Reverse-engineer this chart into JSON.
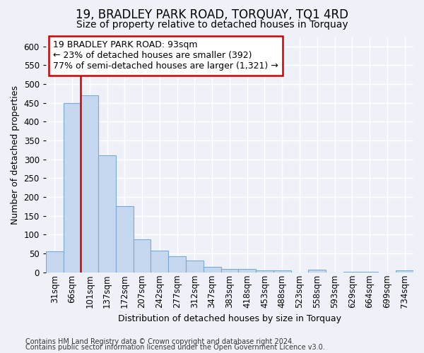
{
  "title": "19, BRADLEY PARK ROAD, TORQUAY, TQ1 4RD",
  "subtitle": "Size of property relative to detached houses in Torquay",
  "xlabel": "Distribution of detached houses by size in Torquay",
  "ylabel": "Number of detached properties",
  "categories": [
    "31sqm",
    "66sqm",
    "101sqm",
    "137sqm",
    "172sqm",
    "207sqm",
    "242sqm",
    "277sqm",
    "312sqm",
    "347sqm",
    "383sqm",
    "418sqm",
    "453sqm",
    "488sqm",
    "523sqm",
    "558sqm",
    "593sqm",
    "629sqm",
    "664sqm",
    "699sqm",
    "734sqm"
  ],
  "values": [
    55,
    450,
    470,
    310,
    175,
    88,
    58,
    42,
    32,
    15,
    8,
    8,
    5,
    5,
    0,
    7,
    0,
    2,
    1,
    0,
    5
  ],
  "bar_color": "#c5d8f0",
  "bar_edge_color": "#7aaad4",
  "vline_x_index": 2,
  "annotation_line1": "19 BRADLEY PARK ROAD: 93sqm",
  "annotation_line2": "← 23% of detached houses are smaller (392)",
  "annotation_line3": "77% of semi-detached houses are larger (1,321) →",
  "annotation_box_color": "#ffffff",
  "annotation_box_edge": "#cc0000",
  "vline_color": "#cc0000",
  "footer1": "Contains HM Land Registry data © Crown copyright and database right 2024.",
  "footer2": "Contains public sector information licensed under the Open Government Licence v3.0.",
  "ylim": [
    0,
    625
  ],
  "yticks": [
    0,
    50,
    100,
    150,
    200,
    250,
    300,
    350,
    400,
    450,
    500,
    550,
    600
  ],
  "background_color": "#eef2f8",
  "grid_color": "#ffffff",
  "title_fontsize": 12,
  "subtitle_fontsize": 10,
  "axis_label_fontsize": 9,
  "tick_fontsize": 8.5,
  "ylabel_fontsize": 9
}
